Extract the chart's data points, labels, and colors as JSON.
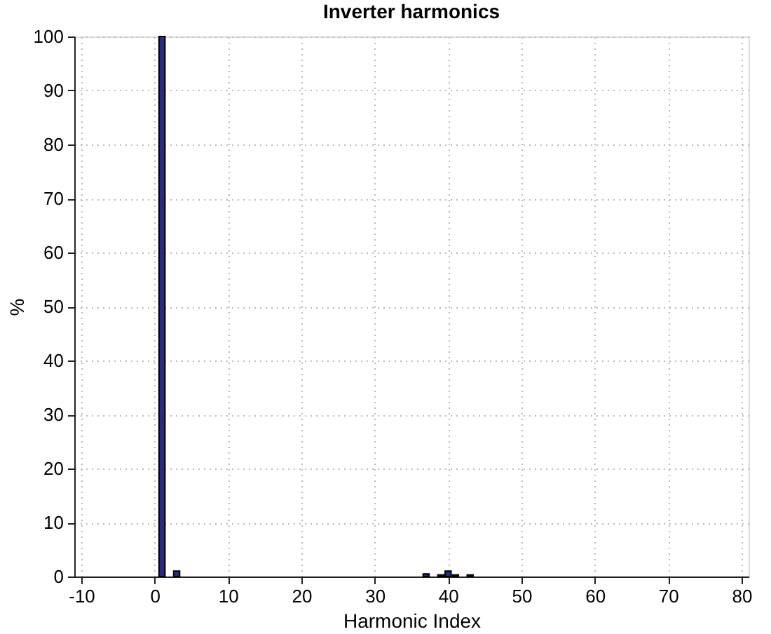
{
  "chart_data": {
    "type": "bar",
    "title": "Inverter harmonics",
    "xlabel": "Harmonic Index",
    "ylabel": "%",
    "x": [
      1,
      3,
      37,
      39,
      40,
      41,
      43
    ],
    "values": [
      100,
      1,
      0.5,
      0.3,
      1,
      0.3,
      0.3
    ],
    "color": "#2b2a7c",
    "xlim": [
      -10,
      80
    ],
    "xticks": [
      -10,
      0,
      10,
      20,
      30,
      40,
      50,
      60,
      70,
      80
    ],
    "ylim": [
      0,
      100
    ],
    "yticks": [
      0,
      10,
      20,
      30,
      40,
      50,
      60,
      70,
      80,
      90,
      100
    ],
    "grid": true
  }
}
